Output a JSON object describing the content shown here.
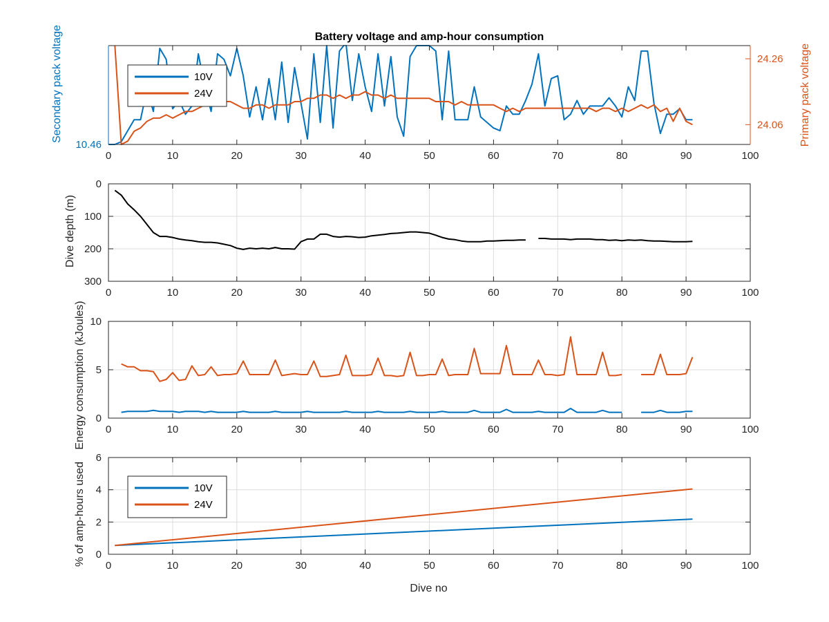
{
  "figure": {
    "title": "Battery voltage and amp-hour consumption",
    "xlabel": "Dive no",
    "colors": {
      "blue": "#0072BD",
      "orange": "#D95319",
      "black": "#000000",
      "axis": "#262626",
      "grid": "#dcdcdc"
    }
  },
  "chart_data": [
    {
      "id": "voltage",
      "type": "line",
      "title": "Battery voltage and amp-hour consumption",
      "xlim": [
        0,
        100
      ],
      "xticks": [
        0,
        10,
        20,
        30,
        40,
        50,
        60,
        70,
        80,
        90,
        100
      ],
      "grid": false,
      "legend": {
        "position": "top-left",
        "entries": [
          "10V",
          "24V"
        ]
      },
      "axes": {
        "left": {
          "label": "Secondary pack voltage",
          "ylim": [
            10.46,
            10.82
          ],
          "ticks": [
            10.46
          ],
          "color": "#0072BD"
        },
        "right": {
          "label": "Primary pack voltage",
          "ylim": [
            24.0,
            24.3
          ],
          "ticks": [
            24.06,
            24.26
          ],
          "color": "#D95319"
        }
      },
      "series": [
        {
          "name": "10V",
          "axis": "left",
          "color": "#0072BD",
          "x": [
            0,
            1,
            2,
            3,
            4,
            5,
            6,
            7,
            8,
            9,
            10,
            11,
            12,
            13,
            14,
            15,
            16,
            17,
            18,
            19,
            20,
            21,
            22,
            23,
            24,
            25,
            26,
            27,
            28,
            29,
            30,
            31,
            32,
            33,
            34,
            35,
            36,
            37,
            38,
            39,
            40,
            41,
            42,
            43,
            44,
            45,
            46,
            47,
            48,
            49,
            50,
            51,
            52,
            53,
            54,
            55,
            56,
            57,
            58,
            59,
            60,
            61,
            62,
            63,
            64,
            65,
            66,
            67,
            68,
            69,
            70,
            71,
            72,
            73,
            74,
            75,
            76,
            77,
            78,
            79,
            80,
            81,
            82,
            83,
            84,
            85,
            86,
            87,
            88,
            89,
            90,
            91
          ],
          "values": [
            10.46,
            10.46,
            10.47,
            10.51,
            10.55,
            10.55,
            10.66,
            10.58,
            10.81,
            10.77,
            10.59,
            10.62,
            10.57,
            10.6,
            10.79,
            10.67,
            10.58,
            10.79,
            10.77,
            10.71,
            10.81,
            10.71,
            10.56,
            10.67,
            10.55,
            10.7,
            10.55,
            10.76,
            10.54,
            10.74,
            10.61,
            10.48,
            10.79,
            10.54,
            10.82,
            10.52,
            10.8,
            10.83,
            10.62,
            10.79,
            10.67,
            10.58,
            10.79,
            10.6,
            10.78,
            10.56,
            10.49,
            10.78,
            10.82,
            10.82,
            10.82,
            10.8,
            10.55,
            10.8,
            10.55,
            10.55,
            10.55,
            10.67,
            10.56,
            10.54,
            10.52,
            10.51,
            10.6,
            10.57,
            10.57,
            10.62,
            10.68,
            10.79,
            10.6,
            10.7,
            10.71,
            10.55,
            10.57,
            10.62,
            10.57,
            10.6,
            10.6,
            10.6,
            10.63,
            10.6,
            10.56,
            10.67,
            10.62,
            10.8,
            10.8,
            10.61,
            10.5,
            10.57,
            10.57,
            10.59,
            10.55,
            10.55
          ]
        },
        {
          "name": "24V",
          "axis": "right",
          "color": "#D95319",
          "x": [
            1,
            1.3,
            2,
            3,
            4,
            5,
            6,
            7,
            8,
            9,
            10,
            11,
            12,
            13,
            14,
            15,
            16,
            17,
            18,
            19,
            20,
            21,
            22,
            23,
            24,
            25,
            26,
            27,
            28,
            29,
            30,
            31,
            32,
            33,
            34,
            35,
            36,
            37,
            38,
            39,
            40,
            41,
            42,
            43,
            44,
            45,
            46,
            47,
            48,
            49,
            50,
            51,
            52,
            53,
            54,
            55,
            56,
            57,
            58,
            59,
            60,
            61,
            62,
            63,
            64,
            65,
            66,
            67,
            68,
            69,
            70,
            71,
            72,
            73,
            74,
            75,
            76,
            77,
            78,
            79,
            80,
            81,
            82,
            83,
            84,
            85,
            86,
            87,
            88,
            89,
            90,
            91
          ],
          "values": [
            24.3,
            24.21,
            24.0,
            24.01,
            24.04,
            24.05,
            24.07,
            24.08,
            24.08,
            24.09,
            24.08,
            24.09,
            24.1,
            24.1,
            24.11,
            24.12,
            24.12,
            24.13,
            24.13,
            24.13,
            24.12,
            24.11,
            24.11,
            24.12,
            24.12,
            24.11,
            24.12,
            24.12,
            24.12,
            24.13,
            24.13,
            24.14,
            24.14,
            24.15,
            24.15,
            24.14,
            24.15,
            24.14,
            24.15,
            24.15,
            24.16,
            24.15,
            24.15,
            24.14,
            24.15,
            24.14,
            24.14,
            24.14,
            24.14,
            24.14,
            24.14,
            24.13,
            24.13,
            24.13,
            24.12,
            24.13,
            24.12,
            24.12,
            24.12,
            24.12,
            24.12,
            24.11,
            24.1,
            24.11,
            24.1,
            24.11,
            24.11,
            24.11,
            24.11,
            24.11,
            24.11,
            24.11,
            24.11,
            24.11,
            24.11,
            24.11,
            24.1,
            24.11,
            24.11,
            24.1,
            24.11,
            24.1,
            24.11,
            24.12,
            24.11,
            24.12,
            24.1,
            24.11,
            24.07,
            24.11,
            24.07,
            24.06
          ]
        }
      ]
    },
    {
      "id": "depth",
      "type": "line",
      "title": "",
      "ylabel": "Dive depth (m)",
      "xlim": [
        0,
        100
      ],
      "ylim": [
        0,
        300
      ],
      "yreversed": true,
      "xticks": [
        0,
        10,
        20,
        30,
        40,
        50,
        60,
        70,
        80,
        90,
        100
      ],
      "yticks": [
        0,
        100,
        200,
        300
      ],
      "grid": true,
      "series": [
        {
          "name": "",
          "color": "#000000",
          "x": [
            1,
            2,
            3,
            4,
            5,
            6,
            7,
            8,
            9,
            10,
            11,
            12,
            13,
            14,
            15,
            16,
            17,
            18,
            19,
            20,
            21,
            22,
            23,
            24,
            25,
            26,
            27,
            28,
            29,
            30,
            31,
            32,
            33,
            34,
            35,
            36,
            37,
            38,
            39,
            40,
            41,
            42,
            43,
            44,
            45,
            46,
            47,
            48,
            49,
            50,
            51,
            52,
            53,
            54,
            55,
            56,
            57,
            58,
            59,
            60,
            61,
            62,
            63,
            64,
            65,
            null,
            67,
            68,
            69,
            70,
            71,
            72,
            73,
            74,
            75,
            76,
            77,
            78,
            79,
            80,
            81,
            82,
            83,
            84,
            85,
            86,
            87,
            88,
            89,
            90,
            91
          ],
          "values": [
            20,
            35,
            62,
            80,
            100,
            125,
            150,
            162,
            162,
            165,
            170,
            173,
            175,
            178,
            180,
            180,
            182,
            186,
            190,
            198,
            202,
            198,
            200,
            198,
            200,
            196,
            200,
            200,
            201,
            178,
            170,
            170,
            155,
            155,
            162,
            164,
            162,
            163,
            165,
            164,
            160,
            158,
            156,
            153,
            152,
            150,
            148,
            148,
            150,
            152,
            158,
            165,
            170,
            172,
            176,
            178,
            178,
            178,
            176,
            176,
            175,
            174,
            174,
            173,
            173,
            null,
            168,
            168,
            170,
            170,
            170,
            172,
            170,
            170,
            170,
            172,
            172,
            174,
            173,
            175,
            173,
            174,
            173,
            175,
            176,
            176,
            177,
            178,
            178,
            178,
            177
          ]
        }
      ]
    },
    {
      "id": "energy",
      "type": "line",
      "title": "",
      "ylabel": "Energy consumption (kJoules)",
      "xlim": [
        0,
        100
      ],
      "ylim": [
        0,
        10
      ],
      "xticks": [
        0,
        10,
        20,
        30,
        40,
        50,
        60,
        70,
        80,
        90,
        100
      ],
      "yticks": [
        0,
        5,
        10
      ],
      "grid": true,
      "series": [
        {
          "name": "",
          "color": "#D95319",
          "x": [
            2,
            3,
            4,
            5,
            6,
            7,
            8,
            9,
            10,
            11,
            12,
            13,
            14,
            15,
            16,
            17,
            18,
            19,
            20,
            21,
            22,
            23,
            24,
            25,
            26,
            27,
            28,
            29,
            30,
            31,
            32,
            33,
            34,
            35,
            36,
            37,
            38,
            39,
            40,
            41,
            42,
            43,
            44,
            45,
            46,
            47,
            48,
            49,
            50,
            51,
            52,
            53,
            54,
            55,
            56,
            57,
            58,
            59,
            60,
            61,
            62,
            63,
            64,
            65,
            66,
            67,
            68,
            69,
            70,
            71,
            72,
            73,
            74,
            75,
            76,
            77,
            78,
            79,
            80,
            null,
            83,
            84,
            85,
            86,
            87,
            88,
            89,
            90,
            91
          ],
          "values": [
            5.6,
            5.3,
            5.3,
            4.9,
            4.9,
            4.8,
            3.8,
            4.0,
            4.7,
            3.9,
            4.0,
            5.4,
            4.4,
            4.5,
            5.3,
            4.4,
            4.5,
            4.5,
            4.6,
            5.9,
            4.5,
            4.5,
            4.5,
            4.5,
            6.0,
            4.4,
            4.5,
            4.6,
            4.5,
            4.5,
            5.9,
            4.3,
            4.3,
            4.4,
            4.5,
            6.5,
            4.4,
            4.4,
            4.4,
            4.5,
            6.2,
            4.4,
            4.4,
            4.3,
            4.4,
            6.8,
            4.4,
            4.4,
            4.5,
            4.5,
            6.1,
            4.4,
            4.5,
            4.5,
            4.5,
            7.2,
            4.6,
            4.6,
            4.6,
            4.6,
            7.5,
            4.5,
            4.5,
            4.5,
            4.5,
            6.0,
            4.5,
            4.5,
            4.4,
            4.5,
            8.4,
            4.5,
            4.5,
            4.5,
            4.5,
            6.8,
            4.4,
            4.4,
            4.5,
            null,
            4.5,
            4.5,
            4.5,
            6.6,
            4.5,
            4.5,
            4.5,
            4.6,
            6.3
          ]
        },
        {
          "name": "",
          "color": "#0072BD",
          "x": [
            2,
            3,
            4,
            5,
            6,
            7,
            8,
            9,
            10,
            11,
            12,
            13,
            14,
            15,
            16,
            17,
            18,
            19,
            20,
            21,
            22,
            23,
            24,
            25,
            26,
            27,
            28,
            29,
            30,
            31,
            32,
            33,
            34,
            35,
            36,
            37,
            38,
            39,
            40,
            41,
            42,
            43,
            44,
            45,
            46,
            47,
            48,
            49,
            50,
            51,
            52,
            53,
            54,
            55,
            56,
            57,
            58,
            59,
            60,
            61,
            62,
            63,
            64,
            65,
            66,
            67,
            68,
            69,
            70,
            71,
            72,
            73,
            74,
            75,
            76,
            77,
            78,
            79,
            80,
            null,
            83,
            84,
            85,
            86,
            87,
            88,
            89,
            90,
            91
          ],
          "values": [
            0.6,
            0.7,
            0.7,
            0.7,
            0.7,
            0.8,
            0.7,
            0.7,
            0.7,
            0.6,
            0.7,
            0.7,
            0.7,
            0.6,
            0.7,
            0.6,
            0.6,
            0.6,
            0.6,
            0.7,
            0.6,
            0.6,
            0.6,
            0.6,
            0.7,
            0.6,
            0.6,
            0.6,
            0.6,
            0.7,
            0.6,
            0.6,
            0.6,
            0.6,
            0.6,
            0.7,
            0.6,
            0.6,
            0.6,
            0.6,
            0.7,
            0.6,
            0.6,
            0.6,
            0.6,
            0.7,
            0.6,
            0.6,
            0.6,
            0.6,
            0.7,
            0.6,
            0.6,
            0.6,
            0.6,
            0.8,
            0.6,
            0.6,
            0.6,
            0.6,
            0.9,
            0.6,
            0.6,
            0.6,
            0.6,
            0.7,
            0.6,
            0.6,
            0.6,
            0.6,
            1.0,
            0.6,
            0.6,
            0.6,
            0.6,
            0.8,
            0.6,
            0.6,
            0.6,
            null,
            0.6,
            0.6,
            0.6,
            0.8,
            0.6,
            0.6,
            0.6,
            0.7,
            0.7
          ]
        }
      ]
    },
    {
      "id": "amphours",
      "type": "line",
      "title": "",
      "xlabel": "Dive no",
      "ylabel": "% of amp-hours used",
      "xlim": [
        0,
        100
      ],
      "ylim": [
        0,
        6
      ],
      "xticks": [
        0,
        10,
        20,
        30,
        40,
        50,
        60,
        70,
        80,
        90,
        100
      ],
      "yticks": [
        0,
        2,
        4,
        6
      ],
      "grid": true,
      "legend": {
        "position": "top-left",
        "entries": [
          "10V",
          "24V"
        ]
      },
      "series": [
        {
          "name": "10V",
          "color": "#0072BD",
          "x": [
            1,
            91
          ],
          "values": [
            0.55,
            2.18
          ]
        },
        {
          "name": "24V",
          "color": "#D95319",
          "x": [
            1,
            91
          ],
          "values": [
            0.55,
            4.05
          ]
        }
      ]
    }
  ]
}
